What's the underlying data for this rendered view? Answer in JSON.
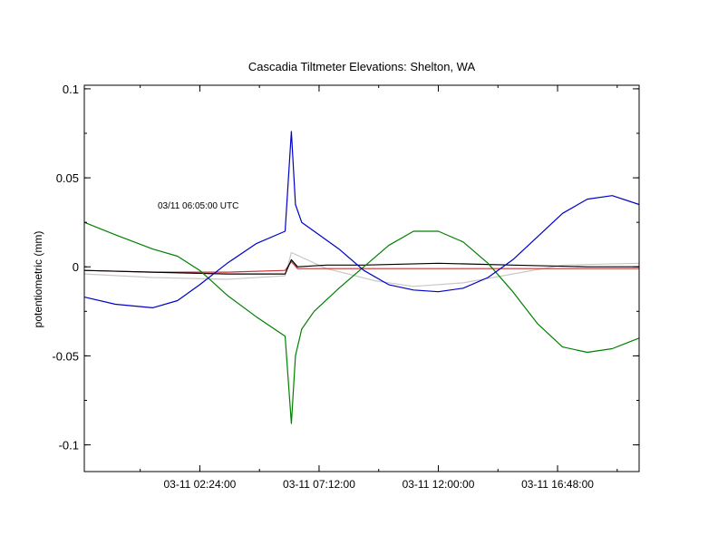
{
  "chart_data": {
    "type": "line",
    "title": "Cascadia Tiltmeter Elevations: Shelton, WA",
    "ylabel": "potentiometric (mm)",
    "xlabel": "",
    "annotation": "03/11 06:05:00 UTC",
    "xlim": [
      "2011-03-10T21:45:00Z",
      "2011-03-11T20:05:00Z"
    ],
    "ylim": [
      -0.115,
      0.102
    ],
    "x_ticks": [
      {
        "value": "2011-03-11T02:24:00Z",
        "label": "03-11 02:24:00"
      },
      {
        "value": "2011-03-11T07:12:00Z",
        "label": "03-11 07:12:00"
      },
      {
        "value": "2011-03-11T12:00:00Z",
        "label": "03-11 12:00:00"
      },
      {
        "value": "2011-03-11T16:48:00Z",
        "label": "03-11 16:48:00"
      }
    ],
    "y_ticks": [
      {
        "value": 0.1,
        "label": "0.1"
      },
      {
        "value": 0.05,
        "label": "0.05"
      },
      {
        "value": 0,
        "label": "0"
      },
      {
        "value": -0.05,
        "label": "-0.05"
      },
      {
        "value": -0.1,
        "label": "-0.1"
      }
    ],
    "grid": false,
    "colors": {
      "blue": "#0000c8",
      "green": "#008000",
      "black": "#000000",
      "red": "#c83232",
      "gray": "#c8c8c8"
    },
    "series": [
      {
        "color": "#0000c8",
        "x": [
          "2011-03-10T21:45:00Z",
          "2011-03-10T23:00:00Z",
          "2011-03-11T00:30:00Z",
          "2011-03-11T01:30:00Z",
          "2011-03-11T02:24:00Z",
          "2011-03-11T03:30:00Z",
          "2011-03-11T04:40:00Z",
          "2011-03-11T05:50:00Z",
          "2011-03-11T06:05:00Z",
          "2011-03-11T06:15:00Z",
          "2011-03-11T06:30:00Z",
          "2011-03-11T07:00:00Z",
          "2011-03-11T08:00:00Z",
          "2011-03-11T09:00:00Z",
          "2011-03-11T10:00:00Z",
          "2011-03-11T11:00:00Z",
          "2011-03-11T12:00:00Z",
          "2011-03-11T13:00:00Z",
          "2011-03-11T14:00:00Z",
          "2011-03-11T15:00:00Z",
          "2011-03-11T16:00:00Z",
          "2011-03-11T17:00:00Z",
          "2011-03-11T18:00:00Z",
          "2011-03-11T19:00:00Z",
          "2011-03-11T20:05:00Z"
        ],
        "y": [
          -0.017,
          -0.021,
          -0.023,
          -0.019,
          -0.01,
          0.002,
          0.013,
          0.02,
          0.076,
          0.035,
          0.025,
          0.02,
          0.01,
          -0.002,
          -0.01,
          -0.013,
          -0.014,
          -0.012,
          -0.006,
          0.004,
          0.017,
          0.03,
          0.038,
          0.04,
          0.035
        ]
      },
      {
        "color": "#008000",
        "x": [
          "2011-03-10T21:45:00Z",
          "2011-03-10T23:00:00Z",
          "2011-03-11T00:30:00Z",
          "2011-03-11T01:30:00Z",
          "2011-03-11T02:24:00Z",
          "2011-03-11T03:30:00Z",
          "2011-03-11T04:40:00Z",
          "2011-03-11T05:50:00Z",
          "2011-03-11T06:05:00Z",
          "2011-03-11T06:15:00Z",
          "2011-03-11T06:30:00Z",
          "2011-03-11T07:00:00Z",
          "2011-03-11T08:00:00Z",
          "2011-03-11T09:00:00Z",
          "2011-03-11T10:00:00Z",
          "2011-03-11T11:00:00Z",
          "2011-03-11T12:00:00Z",
          "2011-03-11T13:00:00Z",
          "2011-03-11T14:00:00Z",
          "2011-03-11T15:00:00Z",
          "2011-03-11T16:00:00Z",
          "2011-03-11T17:00:00Z",
          "2011-03-11T18:00:00Z",
          "2011-03-11T19:00:00Z",
          "2011-03-11T20:05:00Z"
        ],
        "y": [
          0.025,
          0.018,
          0.01,
          0.006,
          -0.002,
          -0.016,
          -0.028,
          -0.039,
          -0.088,
          -0.05,
          -0.035,
          -0.025,
          -0.012,
          0.0,
          0.012,
          0.02,
          0.02,
          0.014,
          0.002,
          -0.014,
          -0.032,
          -0.045,
          -0.048,
          -0.046,
          -0.04
        ]
      },
      {
        "color": "#000000",
        "x": [
          "2011-03-10T21:45:00Z",
          "2011-03-11T00:30:00Z",
          "2011-03-11T03:30:00Z",
          "2011-03-11T05:50:00Z",
          "2011-03-11T06:05:00Z",
          "2011-03-11T06:20:00Z",
          "2011-03-11T07:30:00Z",
          "2011-03-11T09:00:00Z",
          "2011-03-11T12:00:00Z",
          "2011-03-11T15:00:00Z",
          "2011-03-11T18:00:00Z",
          "2011-03-11T20:05:00Z"
        ],
        "y": [
          -0.002,
          -0.003,
          -0.004,
          -0.004,
          0.004,
          0.0,
          0.001,
          0.001,
          0.002,
          0.001,
          0.0,
          0.0
        ]
      },
      {
        "color": "#c83232",
        "x": [
          "2011-03-10T21:45:00Z",
          "2011-03-11T00:30:00Z",
          "2011-03-11T03:30:00Z",
          "2011-03-11T05:50:00Z",
          "2011-03-11T06:05:00Z",
          "2011-03-11T06:20:00Z",
          "2011-03-11T09:00:00Z",
          "2011-03-11T12:00:00Z",
          "2011-03-11T15:00:00Z",
          "2011-03-11T18:00:00Z",
          "2011-03-11T20:05:00Z"
        ],
        "y": [
          -0.002,
          -0.003,
          -0.003,
          -0.002,
          0.003,
          -0.001,
          -0.001,
          -0.001,
          -0.001,
          -0.001,
          -0.001
        ]
      },
      {
        "color": "#c8c8c8",
        "x": [
          "2011-03-10T21:45:00Z",
          "2011-03-11T00:30:00Z",
          "2011-03-11T03:30:00Z",
          "2011-03-11T05:50:00Z",
          "2011-03-11T06:05:00Z",
          "2011-03-11T07:30:00Z",
          "2011-03-11T09:30:00Z",
          "2011-03-11T11:00:00Z",
          "2011-03-11T13:00:00Z",
          "2011-03-11T15:00:00Z",
          "2011-03-11T17:00:00Z",
          "2011-03-11T20:05:00Z"
        ],
        "y": [
          -0.004,
          -0.006,
          -0.007,
          -0.005,
          0.008,
          -0.001,
          -0.008,
          -0.011,
          -0.009,
          -0.004,
          0.001,
          0.002
        ]
      }
    ]
  }
}
